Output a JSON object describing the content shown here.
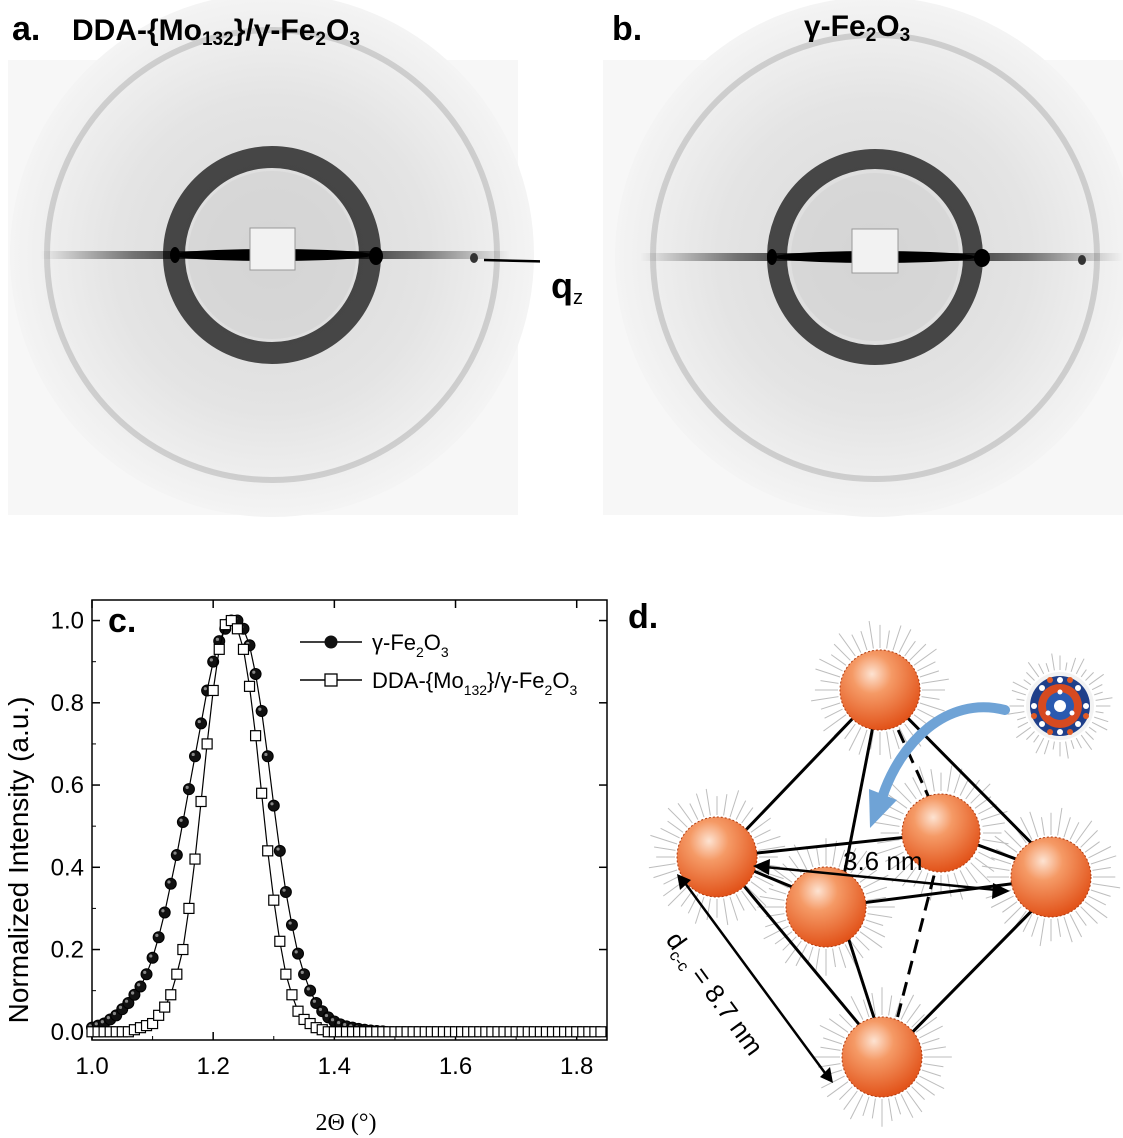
{
  "panels": {
    "a": {
      "letter": "a.",
      "title_pre": "DDA-{Mo",
      "title_sub1": "132",
      "title_mid": "}/γ-Fe",
      "title_sub2": "2",
      "title_mid2": "O",
      "title_sub3": "3"
    },
    "b": {
      "letter": "b.",
      "title_pre": "γ-Fe",
      "title_sub1": "2",
      "title_mid": "O",
      "title_sub2": "3"
    },
    "q_axis": {
      "main": "q",
      "sub": "z"
    },
    "c": {
      "letter": "c."
    },
    "d": {
      "letter": "d.",
      "dist_label": "3.6 nm",
      "dcc_main": "d",
      "dcc_sub": "c-c",
      "dcc_value": " = 8.7 nm"
    }
  },
  "colors": {
    "particle": "#e8662a",
    "particle_highlight": "#fbe1d0",
    "arrow_blue": "#6fa3d6",
    "ring": "#444444"
  },
  "chart_data": {
    "type": "scatter",
    "xlabel": "2Θ (°)",
    "ylabel": "Normalized Intensity (a.u.)",
    "xlim": [
      1.0,
      1.85
    ],
    "ylim": [
      -0.02,
      1.05
    ],
    "xticks": [
      1.0,
      1.2,
      1.4,
      1.6,
      1.8
    ],
    "xtick_labels": [
      "1.0",
      "1.2",
      "1.4",
      "1.6",
      "1.8"
    ],
    "yticks": [
      0.0,
      0.2,
      0.4,
      0.6,
      0.8,
      1.0
    ],
    "ytick_labels": [
      "0.0",
      "0.2",
      "0.4",
      "0.6",
      "0.8",
      "1.0"
    ],
    "legend_position": "top-right",
    "series": [
      {
        "name_pre": "γ-Fe",
        "name_sub1": "2",
        "name_mid": "O",
        "name_sub2": "3",
        "name_post": "",
        "marker": "filled-circle",
        "x": [
          1.0,
          1.01,
          1.02,
          1.03,
          1.04,
          1.05,
          1.06,
          1.07,
          1.08,
          1.09,
          1.1,
          1.11,
          1.12,
          1.13,
          1.14,
          1.15,
          1.16,
          1.17,
          1.18,
          1.19,
          1.2,
          1.21,
          1.22,
          1.23,
          1.24,
          1.25,
          1.26,
          1.27,
          1.28,
          1.29,
          1.3,
          1.31,
          1.32,
          1.33,
          1.34,
          1.35,
          1.36,
          1.37,
          1.38,
          1.39,
          1.4,
          1.41,
          1.42,
          1.43,
          1.44,
          1.45,
          1.46,
          1.47,
          1.48
        ],
        "y": [
          0.01,
          0.015,
          0.02,
          0.03,
          0.04,
          0.055,
          0.07,
          0.09,
          0.11,
          0.14,
          0.18,
          0.23,
          0.29,
          0.36,
          0.43,
          0.51,
          0.59,
          0.67,
          0.75,
          0.83,
          0.9,
          0.95,
          0.98,
          1.0,
          1.0,
          0.98,
          0.94,
          0.87,
          0.78,
          0.67,
          0.55,
          0.44,
          0.34,
          0.26,
          0.19,
          0.14,
          0.1,
          0.07,
          0.05,
          0.035,
          0.025,
          0.018,
          0.013,
          0.01,
          0.007,
          0.005,
          0.003,
          0.002,
          0.001
        ]
      },
      {
        "name_pre": "DDA-{Mo",
        "name_sub1": "132",
        "name_mid": "}/γ-Fe",
        "name_sub2": "2",
        "name_post": "O",
        "name_sub3": "3",
        "marker": "open-square",
        "x": [
          1.0,
          1.01,
          1.02,
          1.03,
          1.04,
          1.05,
          1.06,
          1.07,
          1.08,
          1.09,
          1.1,
          1.11,
          1.12,
          1.13,
          1.14,
          1.15,
          1.16,
          1.17,
          1.18,
          1.19,
          1.2,
          1.21,
          1.22,
          1.23,
          1.24,
          1.25,
          1.26,
          1.27,
          1.28,
          1.29,
          1.3,
          1.31,
          1.32,
          1.33,
          1.34,
          1.35,
          1.36,
          1.37,
          1.38,
          1.39,
          1.4,
          1.41,
          1.42,
          1.43,
          1.44,
          1.45,
          1.46,
          1.47,
          1.48,
          1.49,
          1.5,
          1.51,
          1.52,
          1.53,
          1.54,
          1.55,
          1.56,
          1.57,
          1.58,
          1.59,
          1.6,
          1.61,
          1.62,
          1.63,
          1.64,
          1.65,
          1.66,
          1.67,
          1.68,
          1.69,
          1.7,
          1.71,
          1.72,
          1.73,
          1.74,
          1.75,
          1.76,
          1.77,
          1.78,
          1.79,
          1.8,
          1.81,
          1.82,
          1.83,
          1.84
        ],
        "y": [
          0.0,
          0.0,
          0.0,
          0.0,
          0.0,
          0.0,
          0.0,
          0.005,
          0.01,
          0.015,
          0.02,
          0.04,
          0.06,
          0.09,
          0.14,
          0.2,
          0.3,
          0.42,
          0.56,
          0.7,
          0.83,
          0.93,
          0.99,
          1.0,
          0.98,
          0.93,
          0.84,
          0.72,
          0.58,
          0.44,
          0.32,
          0.22,
          0.14,
          0.09,
          0.05,
          0.03,
          0.02,
          0.01,
          0.005,
          0.0,
          0.0,
          0.0,
          0.0,
          0.0,
          0.0,
          0.0,
          0.0,
          0.0,
          0.0,
          0.0,
          0.0,
          0.0,
          0.0,
          0.0,
          0.0,
          0.0,
          0.0,
          0.0,
          0.0,
          0.0,
          0.0,
          0.0,
          0.0,
          0.0,
          0.0,
          0.0,
          0.0,
          0.0,
          0.0,
          0.0,
          0.0,
          0.0,
          0.0,
          0.0,
          0.0,
          0.0,
          0.0,
          0.0,
          0.0,
          0.0,
          0.0,
          0.0,
          0.0,
          0.0,
          0.0
        ]
      }
    ]
  }
}
